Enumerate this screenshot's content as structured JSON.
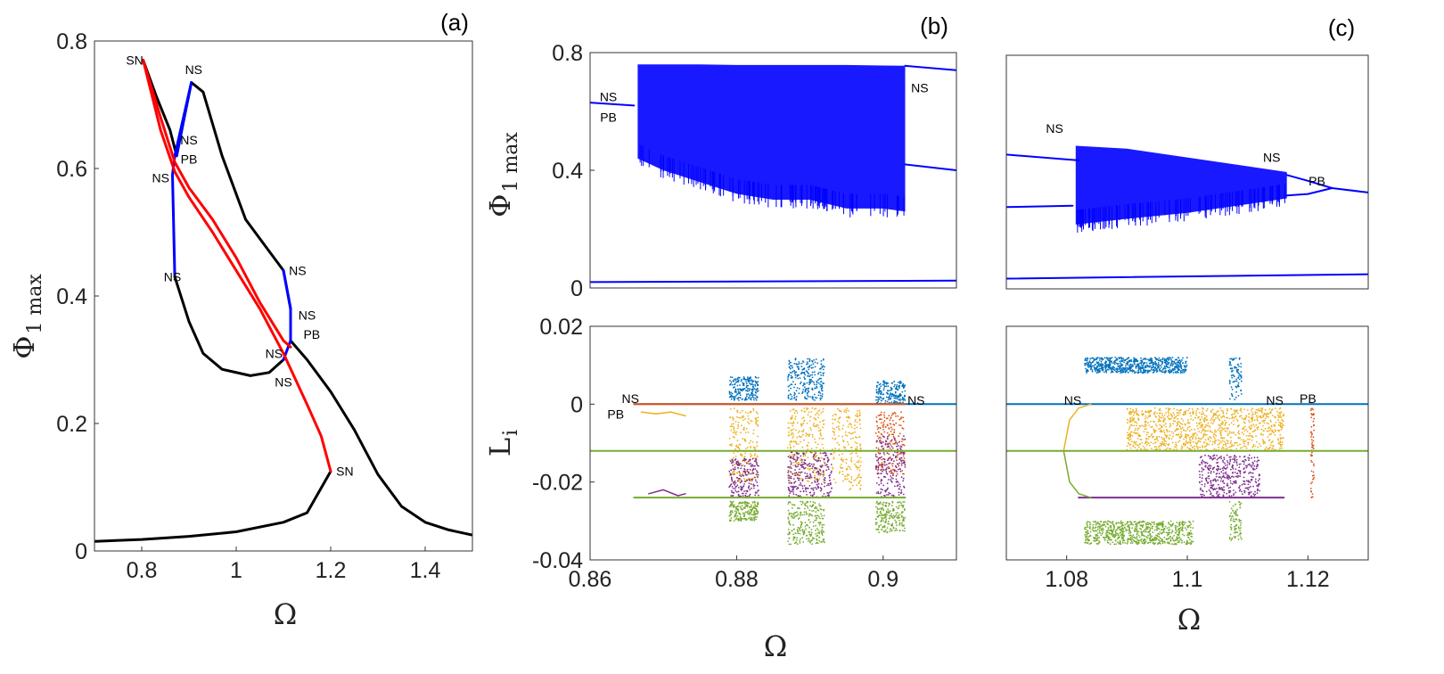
{
  "colors": {
    "stable": "#000000",
    "unstable_red": "#ff0000",
    "unstable_blue": "#0000ff",
    "L1": "#0072bd",
    "L2": "#d95319",
    "L3": "#edb120",
    "L4": "#7e2f8e",
    "L5": "#77ac30"
  },
  "chart_data": [
    {
      "id": "a",
      "type": "line",
      "panel_label": "(a)",
      "xlabel": "Ω",
      "ylabel": "Φ",
      "ylabel_sub": "1 max",
      "xlim": [
        0.7,
        1.5
      ],
      "ylim": [
        0,
        0.8
      ],
      "xticks": [
        0.8,
        1,
        1.2,
        1.4
      ],
      "xtick_labels": [
        "0.8",
        "1",
        "1.2",
        "1.4"
      ],
      "yticks": [
        0,
        0.2,
        0.4,
        0.6,
        0.8
      ],
      "ytick_labels": [
        "0",
        "0.2",
        "0.4",
        "0.6",
        "0.8"
      ],
      "series": [
        {
          "color": "stable",
          "width": 3,
          "x": [
            0.7,
            0.8,
            0.9,
            1.0,
            1.1,
            1.15,
            1.2
          ],
          "y": [
            0.015,
            0.018,
            0.023,
            0.03,
            0.045,
            0.06,
            0.125
          ]
        },
        {
          "color": "stable",
          "width": 3,
          "x": [
            0.803,
            0.83,
            0.86,
            0.874
          ],
          "y": [
            0.77,
            0.715,
            0.66,
            0.62
          ]
        },
        {
          "color": "stable",
          "width": 3,
          "x": [
            0.874,
            0.89,
            0.905,
            0.93,
            0.97,
            1.02,
            1.07,
            1.1
          ],
          "y": [
            0.62,
            0.68,
            0.735,
            0.72,
            0.62,
            0.52,
            0.47,
            0.44
          ]
        },
        {
          "color": "unstable_blue",
          "width": 3,
          "x": [
            1.1,
            1.115
          ],
          "y": [
            0.44,
            0.38
          ]
        },
        {
          "color": "stable",
          "width": 3,
          "x": [
            1.115,
            1.15,
            1.2,
            1.25,
            1.3,
            1.35,
            1.4,
            1.45,
            1.5
          ],
          "y": [
            0.33,
            0.3,
            0.25,
            0.19,
            0.12,
            0.07,
            0.045,
            0.033,
            0.025
          ]
        },
        {
          "color": "unstable_blue",
          "width": 3,
          "x": [
            0.874,
            0.89,
            0.905,
            0.87,
            0.865,
            0.87
          ],
          "y": [
            0.62,
            0.68,
            0.735,
            0.62,
            0.59,
            0.43
          ]
        },
        {
          "color": "stable",
          "width": 3,
          "x": [
            0.87,
            0.9,
            0.93,
            0.97,
            1.03,
            1.07,
            1.1
          ],
          "y": [
            0.43,
            0.36,
            0.31,
            0.285,
            0.275,
            0.28,
            0.3
          ]
        },
        {
          "color": "unstable_blue",
          "width": 3,
          "x": [
            1.1,
            1.115,
            1.115,
            1.1
          ],
          "y": [
            0.44,
            0.38,
            0.33,
            0.3
          ]
        },
        {
          "color": "unstable_red",
          "width": 3,
          "x": [
            0.803,
            0.84,
            0.87,
            0.9,
            0.95,
            1.0,
            1.05,
            1.1,
            1.15,
            1.18,
            1.2
          ],
          "y": [
            0.77,
            0.66,
            0.595,
            0.555,
            0.5,
            0.44,
            0.38,
            0.31,
            0.23,
            0.18,
            0.125
          ]
        },
        {
          "color": "unstable_red",
          "width": 3,
          "x": [
            0.803,
            0.84,
            0.87,
            0.9,
            0.95,
            1.0,
            1.05,
            1.1,
            1.115
          ],
          "y": [
            0.77,
            0.68,
            0.61,
            0.57,
            0.52,
            0.46,
            0.39,
            0.33,
            0.32
          ]
        }
      ],
      "annotations": [
        {
          "text": "SN",
          "x": 0.785,
          "y": 0.77
        },
        {
          "text": "NS",
          "x": 0.91,
          "y": 0.755
        },
        {
          "text": "NS",
          "x": 0.9,
          "y": 0.645
        },
        {
          "text": "PB",
          "x": 0.9,
          "y": 0.615
        },
        {
          "text": "NS",
          "x": 0.84,
          "y": 0.585
        },
        {
          "text": "NS",
          "x": 1.13,
          "y": 0.44
        },
        {
          "text": "NS",
          "x": 0.865,
          "y": 0.43
        },
        {
          "text": "NS",
          "x": 1.15,
          "y": 0.37
        },
        {
          "text": "PB",
          "x": 1.16,
          "y": 0.34
        },
        {
          "text": "NS",
          "x": 1.08,
          "y": 0.31
        },
        {
          "text": "NS",
          "x": 1.1,
          "y": 0.265
        },
        {
          "text": "SN",
          "x": 1.23,
          "y": 0.125
        }
      ]
    },
    {
      "id": "b_top",
      "type": "scatter",
      "panel_label": "(b)",
      "xlabel": "",
      "ylabel": "Φ",
      "ylabel_sub": "1 max",
      "xlim": [
        0.86,
        0.91
      ],
      "ylim": [
        0,
        0.8
      ],
      "xticks": [],
      "xtick_labels": [],
      "yticks": [
        0,
        0.4,
        0.8
      ],
      "ytick_labels": [
        "0",
        "0.4",
        "0.8"
      ],
      "series": [
        {
          "color": "unstable_blue",
          "width": 2,
          "x": [
            0.86,
            0.91
          ],
          "y": [
            0.02,
            0.025
          ]
        },
        {
          "color": "unstable_blue",
          "width": 2,
          "x": [
            0.86,
            0.866
          ],
          "y": [
            0.63,
            0.62
          ]
        },
        {
          "color": "unstable_blue",
          "width": 2,
          "x": [
            0.903,
            0.91
          ],
          "y": [
            0.755,
            0.74
          ]
        },
        {
          "color": "unstable_blue",
          "width": 2,
          "x": [
            0.903,
            0.91
          ],
          "y": [
            0.42,
            0.4
          ]
        }
      ],
      "bands": [
        {
          "color": "unstable_blue",
          "x": [
            0.8665,
            0.87,
            0.875,
            0.88,
            0.885,
            0.89,
            0.895,
            0.9,
            0.903
          ],
          "upper": [
            0.76,
            0.76,
            0.76,
            0.758,
            0.758,
            0.758,
            0.758,
            0.756,
            0.755
          ],
          "lower": [
            0.44,
            0.4,
            0.36,
            0.32,
            0.3,
            0.3,
            0.27,
            0.27,
            0.26
          ]
        }
      ],
      "annotations": [
        {
          "text": "NS",
          "x": 0.8625,
          "y": 0.65
        },
        {
          "text": "PB",
          "x": 0.8625,
          "y": 0.58
        },
        {
          "text": "NS",
          "x": 0.905,
          "y": 0.68
        }
      ]
    },
    {
      "id": "b_bottom",
      "type": "scatter",
      "panel_label": "",
      "xlabel": "Ω",
      "ylabel": "L",
      "ylabel_sub": "i",
      "xlim": [
        0.86,
        0.91
      ],
      "ylim": [
        -0.04,
        0.02
      ],
      "xticks": [
        0.86,
        0.88,
        0.9
      ],
      "xtick_labels": [
        "0.86",
        "0.88",
        "0.9"
      ],
      "yticks": [
        -0.04,
        -0.02,
        0,
        0.02
      ],
      "ytick_labels": [
        "-0.04",
        "-0.02",
        "0",
        "0.02"
      ],
      "series": [
        {
          "color": "L1",
          "width": 2,
          "x": [
            0.866,
            0.91
          ],
          "y": [
            0,
            0
          ]
        },
        {
          "color": "L2",
          "width": 2,
          "x": [
            0.866,
            0.903
          ],
          "y": [
            0,
            0
          ]
        },
        {
          "color": "L5",
          "width": 2,
          "x": [
            0.86,
            0.91
          ],
          "y": [
            -0.012,
            -0.012
          ]
        },
        {
          "color": "L5",
          "width": 2,
          "x": [
            0.866,
            0.903
          ],
          "y": [
            -0.024,
            -0.024
          ]
        },
        {
          "color": "L3",
          "width": 1.5,
          "x": [
            0.867,
            0.869,
            0.871,
            0.873
          ],
          "y": [
            -0.002,
            -0.0025,
            -0.002,
            -0.003
          ]
        },
        {
          "color": "L4",
          "width": 1.5,
          "x": [
            0.868,
            0.87,
            0.872,
            0.873
          ],
          "y": [
            -0.023,
            -0.022,
            -0.0235,
            -0.023
          ]
        }
      ],
      "clusters": [
        {
          "color": "L1",
          "x": [
            0.879,
            0.883
          ],
          "y": [
            0.001,
            0.007
          ]
        },
        {
          "color": "L1",
          "x": [
            0.887,
            0.892
          ],
          "y": [
            0.001,
            0.012
          ]
        },
        {
          "color": "L1",
          "x": [
            0.899,
            0.903
          ],
          "y": [
            0.0,
            0.006
          ]
        },
        {
          "color": "L3",
          "x": [
            0.879,
            0.883
          ],
          "y": [
            -0.02,
            -0.001
          ]
        },
        {
          "color": "L3",
          "x": [
            0.887,
            0.892
          ],
          "y": [
            -0.02,
            -0.001
          ]
        },
        {
          "color": "L3",
          "x": [
            0.893,
            0.897
          ],
          "y": [
            -0.022,
            -0.001
          ]
        },
        {
          "color": "L2",
          "x": [
            0.899,
            0.903
          ],
          "y": [
            -0.018,
            -0.002
          ]
        },
        {
          "color": "L4",
          "x": [
            0.879,
            0.883
          ],
          "y": [
            -0.024,
            -0.014
          ]
        },
        {
          "color": "L4",
          "x": [
            0.887,
            0.893
          ],
          "y": [
            -0.024,
            -0.012
          ]
        },
        {
          "color": "L4",
          "x": [
            0.899,
            0.903
          ],
          "y": [
            -0.024,
            -0.008
          ]
        },
        {
          "color": "L5",
          "x": [
            0.879,
            0.883
          ],
          "y": [
            -0.03,
            -0.025
          ]
        },
        {
          "color": "L5",
          "x": [
            0.887,
            0.892
          ],
          "y": [
            -0.036,
            -0.025
          ]
        },
        {
          "color": "L5",
          "x": [
            0.899,
            0.903
          ],
          "y": [
            -0.033,
            -0.025
          ]
        }
      ],
      "annotations": [
        {
          "text": "NS",
          "x": 0.8655,
          "y": 0.0015
        },
        {
          "text": "PB",
          "x": 0.8635,
          "y": -0.0025
        },
        {
          "text": "NS",
          "x": 0.9045,
          "y": 0.001
        }
      ]
    },
    {
      "id": "c_top",
      "type": "scatter",
      "panel_label": "(c)",
      "xlabel": "",
      "ylabel": "",
      "ylabel_sub": "",
      "xlim": [
        1.07,
        1.13
      ],
      "ylim": [
        0,
        0.8
      ],
      "xticks": [],
      "xtick_labels": [],
      "yticks": [],
      "ytick_labels": [],
      "series": [
        {
          "color": "unstable_blue",
          "width": 2,
          "x": [
            1.07,
            1.13
          ],
          "y": [
            0.035,
            0.05
          ]
        },
        {
          "color": "unstable_blue",
          "width": 2,
          "x": [
            1.07,
            1.082
          ],
          "y": [
            0.46,
            0.44
          ]
        },
        {
          "color": "unstable_blue",
          "width": 2,
          "x": [
            1.07,
            1.081
          ],
          "y": [
            0.28,
            0.285
          ]
        },
        {
          "color": "unstable_blue",
          "width": 2,
          "x": [
            1.1165,
            1.12,
            1.124
          ],
          "y": [
            0.39,
            0.37,
            0.345
          ]
        },
        {
          "color": "unstable_blue",
          "width": 2,
          "x": [
            1.1165,
            1.12,
            1.124
          ],
          "y": [
            0.32,
            0.325,
            0.345
          ]
        },
        {
          "color": "unstable_blue",
          "width": 2,
          "x": [
            1.124,
            1.13
          ],
          "y": [
            0.345,
            0.33
          ]
        }
      ],
      "bands": [
        {
          "color": "unstable_blue",
          "x": [
            1.0815,
            1.09,
            1.1,
            1.11,
            1.1165
          ],
          "upper": [
            0.49,
            0.48,
            0.45,
            0.42,
            0.4
          ],
          "lower": [
            0.22,
            0.24,
            0.26,
            0.29,
            0.31
          ]
        }
      ],
      "annotations": [
        {
          "text": "NS",
          "x": 1.078,
          "y": 0.55
        },
        {
          "text": "NS",
          "x": 1.114,
          "y": 0.45
        },
        {
          "text": "PB",
          "x": 1.1215,
          "y": 0.37
        }
      ]
    },
    {
      "id": "c_bottom",
      "type": "scatter",
      "panel_label": "",
      "xlabel": "Ω",
      "ylabel": "",
      "ylabel_sub": "",
      "xlim": [
        1.07,
        1.13
      ],
      "ylim": [
        -0.04,
        0.02
      ],
      "xticks": [
        1.08,
        1.1,
        1.12
      ],
      "xtick_labels": [
        "1.08",
        "1.1",
        "1.12"
      ],
      "yticks": [],
      "ytick_labels": [],
      "series": [
        {
          "color": "L1",
          "width": 2,
          "x": [
            1.07,
            1.13
          ],
          "y": [
            0,
            0
          ]
        },
        {
          "color": "L5",
          "width": 2,
          "x": [
            1.07,
            1.13
          ],
          "y": [
            -0.012,
            -0.012
          ]
        },
        {
          "color": "L4",
          "width": 2,
          "x": [
            1.082,
            1.116
          ],
          "y": [
            -0.024,
            -0.024
          ]
        },
        {
          "color": "L3",
          "width": 1.5,
          "x": [
            1.0795,
            1.0805,
            1.082,
            1.084
          ],
          "y": [
            -0.012,
            -0.004,
            -0.001,
            0
          ]
        },
        {
          "color": "L5",
          "width": 1.5,
          "x": [
            1.0795,
            1.0805,
            1.082,
            1.084
          ],
          "y": [
            -0.012,
            -0.02,
            -0.023,
            -0.024
          ]
        }
      ],
      "clusters": [
        {
          "color": "L1",
          "x": [
            1.083,
            1.1
          ],
          "y": [
            0.008,
            0.012
          ]
        },
        {
          "color": "L1",
          "x": [
            1.107,
            1.109
          ],
          "y": [
            0.001,
            0.012
          ]
        },
        {
          "color": "L3",
          "x": [
            1.09,
            1.116
          ],
          "y": [
            -0.012,
            -0.001
          ]
        },
        {
          "color": "L4",
          "x": [
            1.102,
            1.112
          ],
          "y": [
            -0.024,
            -0.013
          ]
        },
        {
          "color": "L5",
          "x": [
            1.083,
            1.101
          ],
          "y": [
            -0.036,
            -0.03
          ]
        },
        {
          "color": "L5",
          "x": [
            1.107,
            1.109
          ],
          "y": [
            -0.035,
            -0.025
          ]
        },
        {
          "color": "L2",
          "x": [
            1.1205,
            1.121
          ],
          "y": [
            -0.024,
            -0.001
          ]
        }
      ],
      "annotations": [
        {
          "text": "NS",
          "x": 1.081,
          "y": 0.001
        },
        {
          "text": "NS",
          "x": 1.1145,
          "y": 0.001
        },
        {
          "text": "PB",
          "x": 1.12,
          "y": 0.0015
        }
      ]
    }
  ]
}
